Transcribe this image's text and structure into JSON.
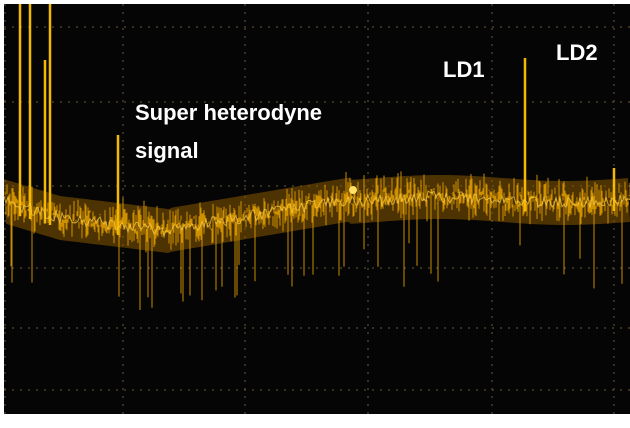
{
  "annotations": {
    "signal_label_line1": "Super heterodyne",
    "signal_label_line2": "signal",
    "peak1": "LD1",
    "peak2": "LD2"
  }
}
